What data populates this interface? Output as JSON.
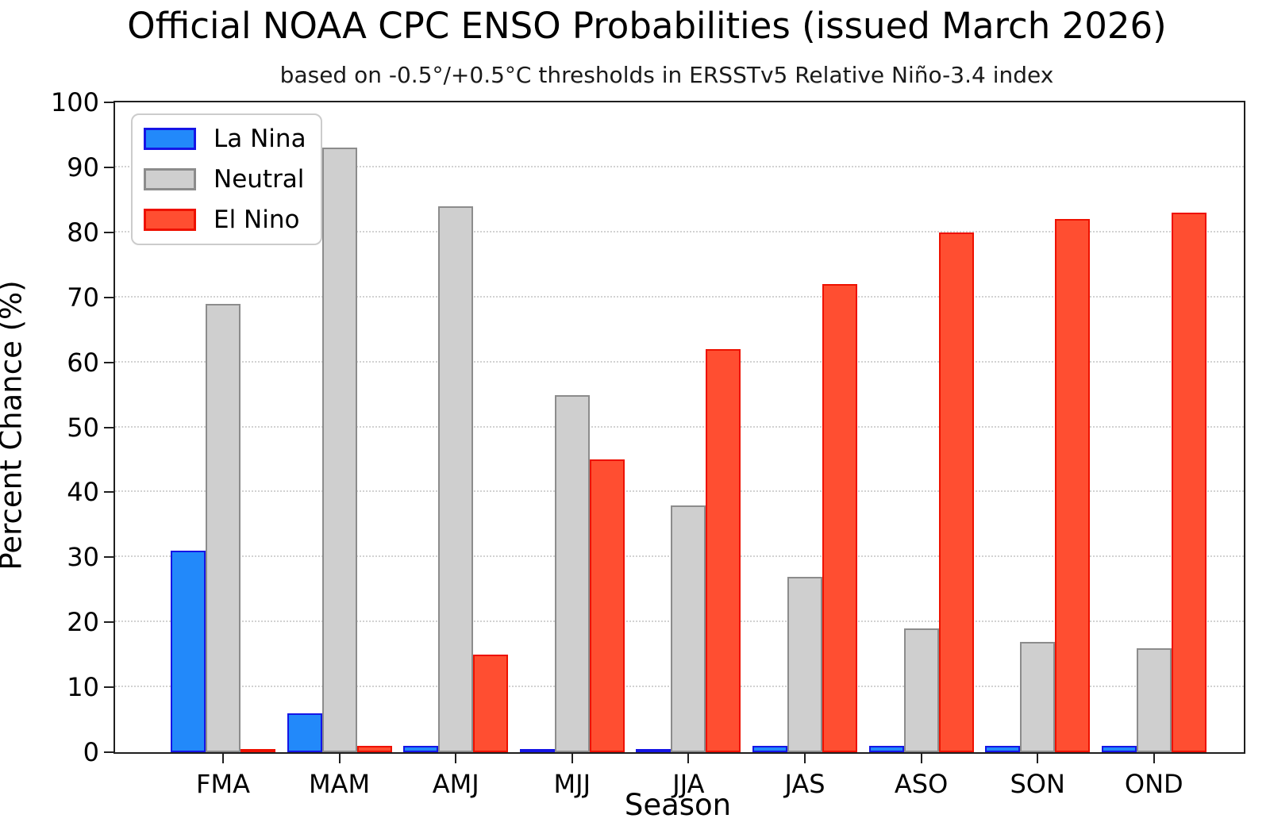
{
  "title": "Official NOAA CPC ENSO Probabilities (issued March 2026)",
  "subtitle": "based on -0.5°/+0.5°C thresholds in ERSSTv5 Relative Niño-3.4 index",
  "chart_data": {
    "type": "bar",
    "categories": [
      "FMA",
      "MAM",
      "AMJ",
      "MJJ",
      "JJA",
      "JAS",
      "ASO",
      "SON",
      "OND"
    ],
    "series": [
      {
        "name": "La Nina",
        "fill": "#2289FA",
        "edge": "#1515E6",
        "values": [
          31,
          6,
          1,
          0,
          0,
          1,
          1,
          1,
          1
        ]
      },
      {
        "name": "Neutral",
        "fill": "#CFCFCF",
        "edge": "#8C8C8C",
        "values": [
          69,
          93,
          84,
          55,
          38,
          27,
          19,
          17,
          16
        ]
      },
      {
        "name": "El Nino",
        "fill": "#FF4E31",
        "edge": "#EE1100",
        "values": [
          0,
          1,
          15,
          45,
          62,
          72,
          80,
          82,
          83
        ]
      }
    ],
    "xlabel": "Season",
    "ylabel": "Percent Chance (%)",
    "ylim": [
      0,
      100
    ],
    "yticks": [
      0,
      10,
      20,
      30,
      40,
      50,
      60,
      70,
      80,
      90,
      100
    ],
    "grid": true,
    "grid_style": "dotted",
    "legend_position": "upper left",
    "background_color": "#FFFFFF",
    "spine_color": "#1F1F1F"
  }
}
